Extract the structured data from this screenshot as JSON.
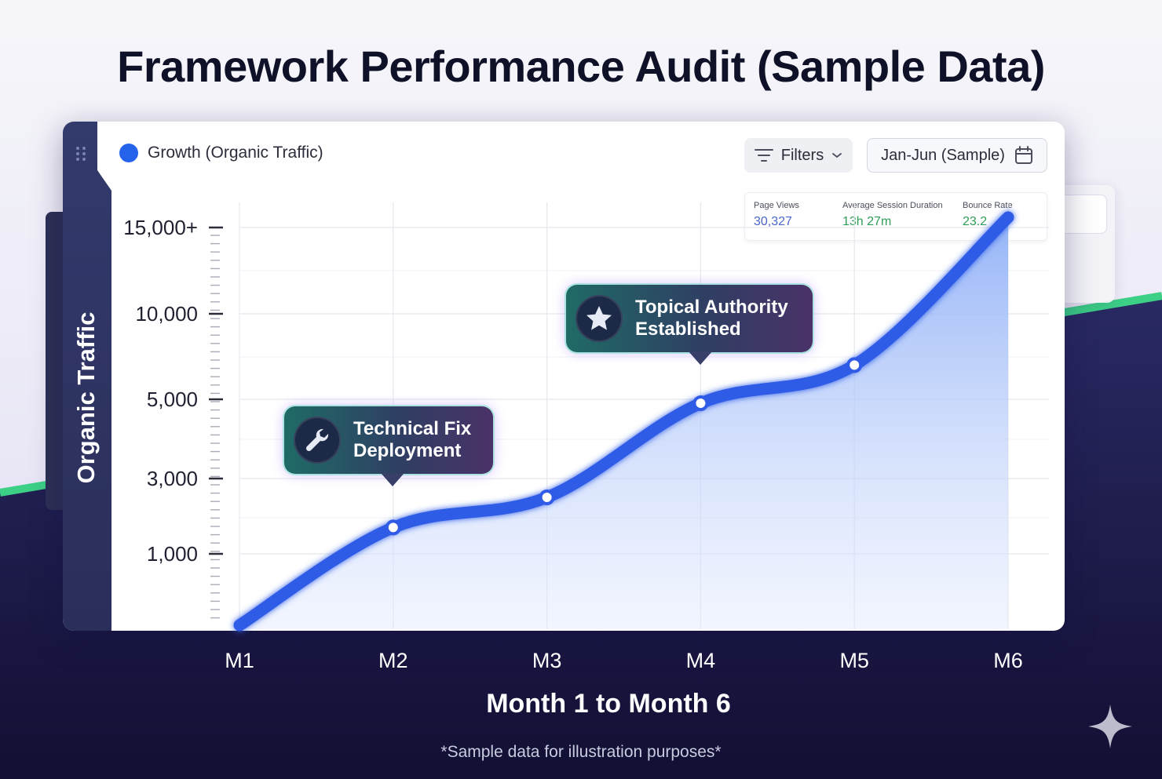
{
  "title": "Framework Performance Audit (Sample Data)",
  "legend": {
    "label": "Growth (Organic Traffic)",
    "color": "#2563eb"
  },
  "toolbar": {
    "filters_label": "Filters",
    "date_range": "Jan-Jun (Sample)"
  },
  "metrics": [
    {
      "label": "Page Views",
      "value": "30,327",
      "color": "#4a66c9"
    },
    {
      "label": "Average Session Duration",
      "value": "13h 27m",
      "color": "#2e9e57"
    },
    {
      "label": "Bounce Rate",
      "value": "23.2",
      "color": "#2e9e57"
    }
  ],
  "annotations": [
    {
      "icon": "wrench-icon",
      "line1": "Technical Fix",
      "line2": "Deployment"
    },
    {
      "icon": "star-icon",
      "line1": "Topical Authority",
      "line2": "Established"
    }
  ],
  "chart_data": {
    "type": "area",
    "title": "Framework Performance Audit (Sample Data)",
    "xlabel": "Month 1 to Month 6",
    "ylabel": "Organic Traffic",
    "categories": [
      "M1",
      "M2",
      "M3",
      "M4",
      "M5",
      "M6"
    ],
    "y_ticks": [
      {
        "value": 1000,
        "label": "1,000"
      },
      {
        "value": 3000,
        "label": "3,000"
      },
      {
        "value": 5000,
        "label": "5,000"
      },
      {
        "value": 10000,
        "label": "10,000"
      },
      {
        "value": 15000,
        "label": "15,000+"
      }
    ],
    "series": [
      {
        "name": "Growth (Organic Traffic)",
        "values": [
          0,
          1700,
          2500,
          4900,
          7000,
          15500
        ]
      }
    ],
    "grid": true,
    "legend_position": "top-left",
    "color": "#2563eb"
  },
  "footnote": "*Sample data for illustration purposes*"
}
